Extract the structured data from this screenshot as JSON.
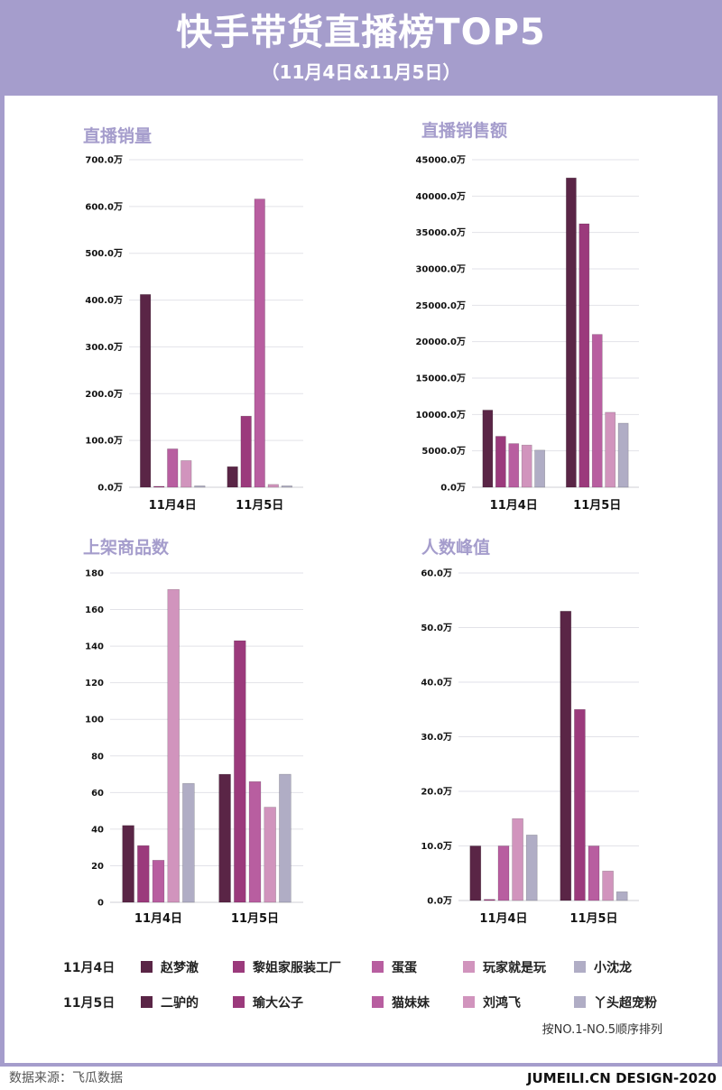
{
  "header": {
    "title": "快手带货直播榜TOP5",
    "subtitle": "（11月4日&11月5日）"
  },
  "colors": {
    "frame": "#a59dcc",
    "series": [
      "#5a2546",
      "#9b3a7c",
      "#b85ea0",
      "#d194bd",
      "#b0adc5"
    ]
  },
  "chart_data": [
    {
      "type": "bar",
      "title": "直播销量",
      "categories": [
        "11月4日",
        "11月5日"
      ],
      "ylim": [
        0,
        700
      ],
      "yticks": [
        "0.0万",
        "100.0万",
        "200.0万",
        "300.0万",
        "400.0万",
        "500.0万",
        "600.0万",
        "700.0万"
      ],
      "grid": true,
      "series": [
        {
          "values": [
            412,
            44
          ]
        },
        {
          "values": [
            2,
            152
          ]
        },
        {
          "values": [
            82,
            616
          ]
        },
        {
          "values": [
            57,
            6
          ]
        },
        {
          "values": [
            3,
            3
          ]
        }
      ]
    },
    {
      "type": "bar",
      "title": "直播销售额",
      "categories": [
        "11月4日",
        "11月5日"
      ],
      "ylim": [
        0,
        45000
      ],
      "yticks": [
        "0.0万",
        "5000.0万",
        "10000.0万",
        "15000.0万",
        "20000.0万",
        "25000.0万",
        "30000.0万",
        "35000.0万",
        "40000.0万",
        "45000.0万"
      ],
      "grid": true,
      "series": [
        {
          "values": [
            10600,
            42500
          ]
        },
        {
          "values": [
            7000,
            36200
          ]
        },
        {
          "values": [
            6000,
            21000
          ]
        },
        {
          "values": [
            5800,
            10300
          ]
        },
        {
          "values": [
            5100,
            8800
          ]
        }
      ]
    },
    {
      "type": "bar",
      "title": "上架商品数",
      "categories": [
        "11月4日",
        "11月5日"
      ],
      "ylim": [
        0,
        180
      ],
      "yticks": [
        "0",
        "20",
        "40",
        "60",
        "80",
        "100",
        "120",
        "140",
        "160",
        "180"
      ],
      "grid": true,
      "series": [
        {
          "values": [
            42,
            70
          ]
        },
        {
          "values": [
            31,
            143
          ]
        },
        {
          "values": [
            23,
            66
          ]
        },
        {
          "values": [
            171,
            52
          ]
        },
        {
          "values": [
            65,
            70
          ]
        }
      ]
    },
    {
      "type": "bar",
      "title": "人数峰值",
      "categories": [
        "11月4日",
        "11月5日"
      ],
      "ylim": [
        0,
        60
      ],
      "yticks": [
        "0.0万",
        "10.0万",
        "20.0万",
        "30.0万",
        "40.0万",
        "50.0万",
        "60.0万"
      ],
      "grid": true,
      "series": [
        {
          "values": [
            10,
            53
          ]
        },
        {
          "values": [
            0.2,
            35
          ]
        },
        {
          "values": [
            10,
            10
          ]
        },
        {
          "values": [
            15,
            5.4
          ]
        },
        {
          "values": [
            12,
            1.6
          ]
        }
      ]
    }
  ],
  "legend": {
    "rows": [
      {
        "date": "11月4日",
        "names": [
          "赵梦澈",
          "黎姐家服装工厂",
          "蛋蛋",
          "玩家就是玩",
          "小沈龙"
        ]
      },
      {
        "date": "11月5日",
        "names": [
          "二驴的",
          "瑜大公子",
          "猫妹妹",
          "刘鸿飞",
          "丫头超宠粉"
        ]
      }
    ],
    "note": "按NO.1-NO.5顺序排列"
  },
  "footer": {
    "source": "数据来源：飞瓜数据",
    "brand": "JUMEILI.CN DESIGN-2020"
  }
}
